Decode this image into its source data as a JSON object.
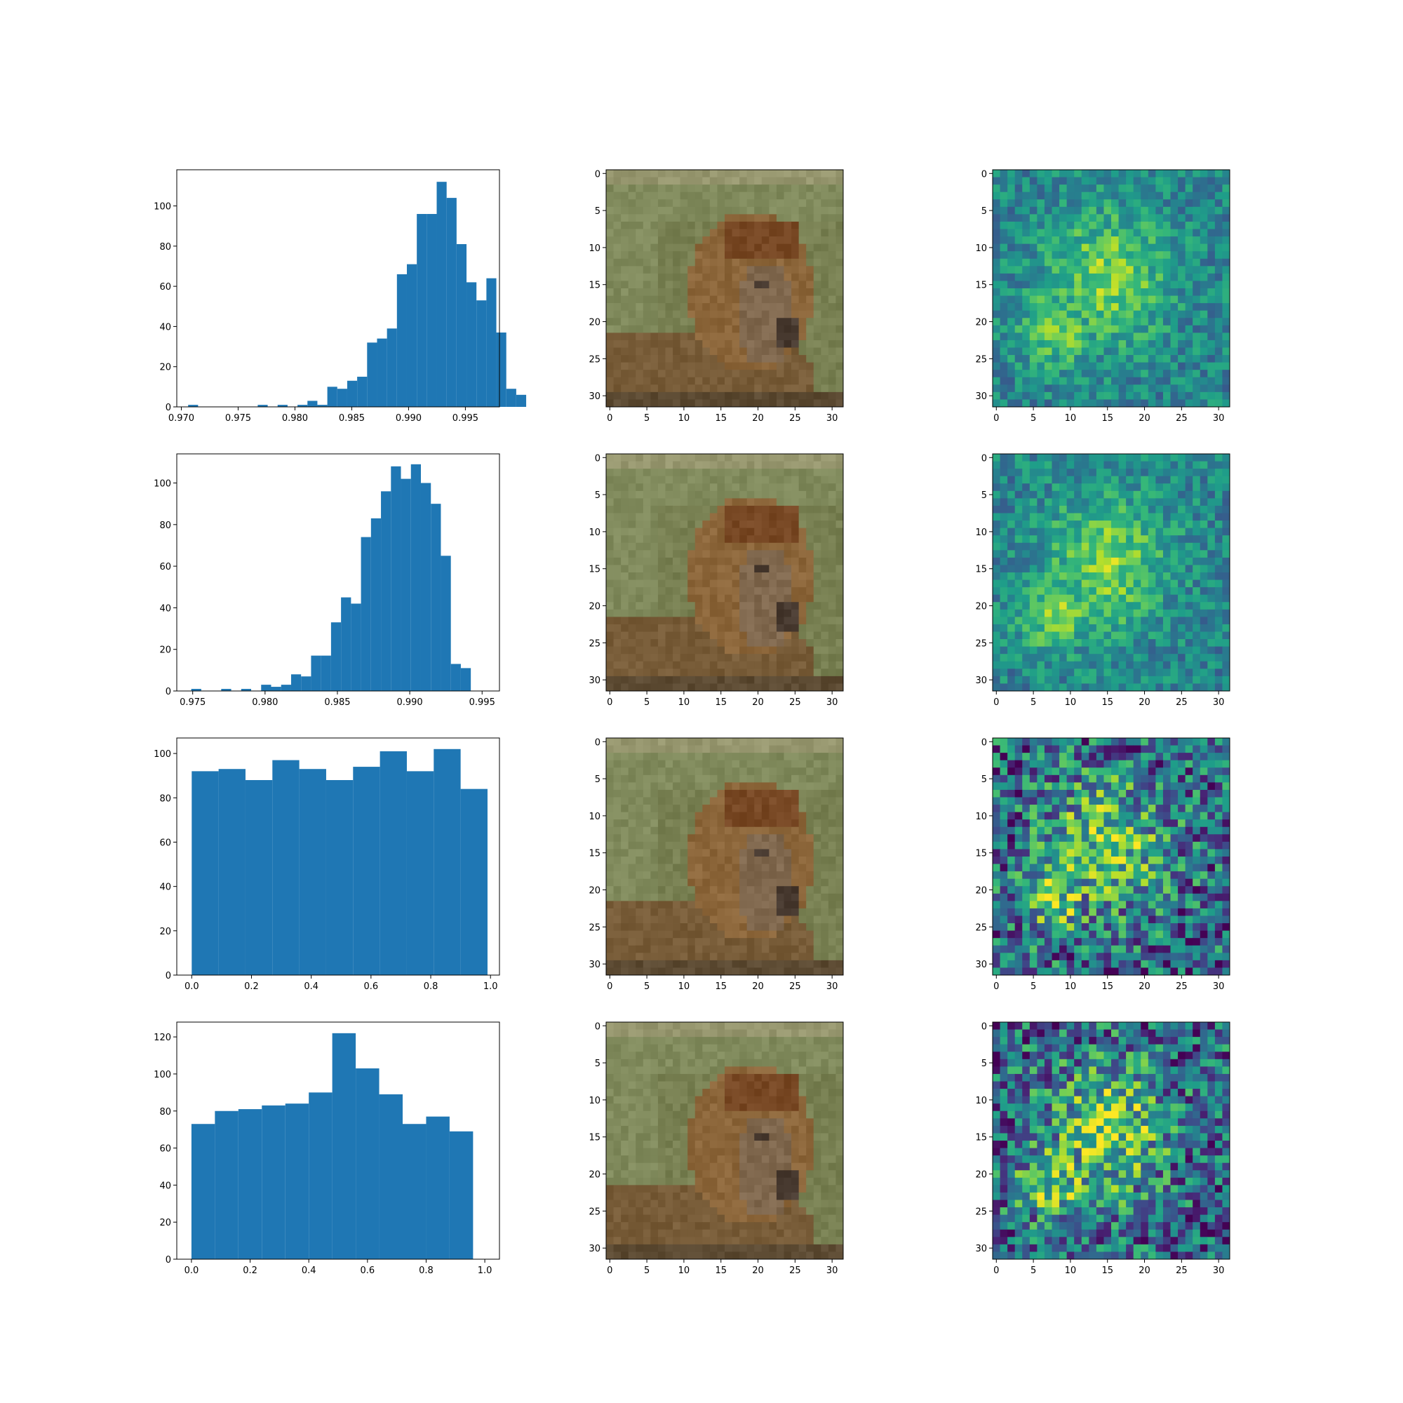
{
  "chart_data": [
    {
      "type": "bar",
      "xlim": [
        0.9696,
        0.998
      ],
      "ylim": [
        0,
        118
      ],
      "xticks": [
        "0.970",
        "0.975",
        "0.980",
        "0.985",
        "0.990",
        "0.995"
      ],
      "yticks": [
        "0",
        "20",
        "40",
        "60",
        "80",
        "100"
      ],
      "bins": {
        "start": 0.9706,
        "width": 0.000875,
        "values": [
          1,
          0,
          0,
          0,
          0,
          0,
          0,
          1,
          0,
          1,
          0,
          1,
          3,
          1,
          10,
          9,
          13,
          15,
          32,
          34,
          39,
          66,
          71,
          96,
          96,
          112,
          104,
          81,
          62,
          53,
          64,
          37,
          9,
          6
        ]
      },
      "color": "#1f77b4"
    },
    {
      "type": "bar",
      "xlim": [
        0.9739,
        0.9962
      ],
      "ylim": [
        0,
        114
      ],
      "xticks": [
        "0.975",
        "0.980",
        "0.985",
        "0.990",
        "0.995"
      ],
      "yticks": [
        "0",
        "20",
        "40",
        "60",
        "80",
        "100"
      ],
      "bins": {
        "start": 0.9749,
        "width": 0.00069,
        "values": [
          1,
          0,
          0,
          1,
          0,
          1,
          0,
          3,
          2,
          3,
          8,
          7,
          17,
          17,
          33,
          45,
          42,
          74,
          83,
          96,
          108,
          102,
          109,
          100,
          90,
          65,
          13,
          11
        ]
      },
      "color": "#1f77b4"
    },
    {
      "type": "bar",
      "xlim": [
        -0.05,
        1.03
      ],
      "ylim": [
        0,
        107
      ],
      "xticks": [
        "0.0",
        "0.2",
        "0.4",
        "0.6",
        "0.8",
        "1.0"
      ],
      "yticks": [
        "0",
        "20",
        "40",
        "60",
        "80",
        "100"
      ],
      "bins": {
        "start": 0.0,
        "width": 0.09,
        "values": [
          92,
          93,
          88,
          97,
          93,
          88,
          94,
          101,
          92,
          102,
          84
        ]
      },
      "color": "#1f77b4"
    },
    {
      "type": "bar",
      "xlim": [
        -0.05,
        1.05
      ],
      "ylim": [
        0,
        128
      ],
      "xticks": [
        "0.0",
        "0.2",
        "0.4",
        "0.6",
        "0.8",
        "1.0"
      ],
      "yticks": [
        "0",
        "20",
        "40",
        "60",
        "80",
        "100",
        "120"
      ],
      "bins": {
        "start": 0.0,
        "width": 0.08,
        "values": [
          73,
          80,
          81,
          83,
          84,
          90,
          122,
          103,
          89,
          73,
          77,
          69
        ]
      },
      "color": "#1f77b4"
    },
    {
      "type": "heatmap",
      "content": "photo",
      "rows": 32,
      "cols": 32,
      "xticks": [
        "0",
        "5",
        "10",
        "15",
        "20",
        "25",
        "30"
      ],
      "yticks": [
        "0",
        "5",
        "10",
        "15",
        "20",
        "25",
        "30"
      ]
    },
    {
      "type": "heatmap",
      "content": "photo",
      "rows": 32,
      "cols": 32,
      "xticks": [
        "0",
        "5",
        "10",
        "15",
        "20",
        "25",
        "30"
      ],
      "yticks": [
        "0",
        "5",
        "10",
        "15",
        "20",
        "25",
        "30"
      ]
    },
    {
      "type": "heatmap",
      "content": "photo",
      "rows": 32,
      "cols": 32,
      "xticks": [
        "0",
        "5",
        "10",
        "15",
        "20",
        "25",
        "30"
      ],
      "yticks": [
        "0",
        "5",
        "10",
        "15",
        "20",
        "25",
        "30"
      ]
    },
    {
      "type": "heatmap",
      "content": "photo",
      "rows": 32,
      "cols": 32,
      "xticks": [
        "0",
        "5",
        "10",
        "15",
        "20",
        "25",
        "30"
      ],
      "yticks": [
        "0",
        "5",
        "10",
        "15",
        "20",
        "25",
        "30"
      ]
    },
    {
      "type": "heatmap",
      "content": "viridis-map",
      "rows": 32,
      "cols": 32,
      "mode": "smooth",
      "xticks": [
        "0",
        "5",
        "10",
        "15",
        "20",
        "25",
        "30"
      ],
      "yticks": [
        "0",
        "5",
        "10",
        "15",
        "20",
        "25",
        "30"
      ]
    },
    {
      "type": "heatmap",
      "content": "viridis-map",
      "rows": 32,
      "cols": 32,
      "mode": "smooth",
      "xticks": [
        "0",
        "5",
        "10",
        "15",
        "20",
        "25",
        "30"
      ],
      "yticks": [
        "0",
        "5",
        "10",
        "15",
        "20",
        "25",
        "30"
      ]
    },
    {
      "type": "heatmap",
      "content": "viridis-map",
      "rows": 32,
      "cols": 32,
      "mode": "noisy",
      "xticks": [
        "0",
        "5",
        "10",
        "15",
        "20",
        "25",
        "30"
      ],
      "yticks": [
        "0",
        "5",
        "10",
        "15",
        "20",
        "25",
        "30"
      ]
    },
    {
      "type": "heatmap",
      "content": "viridis-map",
      "rows": 32,
      "cols": 32,
      "mode": "noisy",
      "xticks": [
        "0",
        "5",
        "10",
        "15",
        "20",
        "25",
        "30"
      ],
      "yticks": [
        "0",
        "5",
        "10",
        "15",
        "20",
        "25",
        "30"
      ]
    }
  ]
}
